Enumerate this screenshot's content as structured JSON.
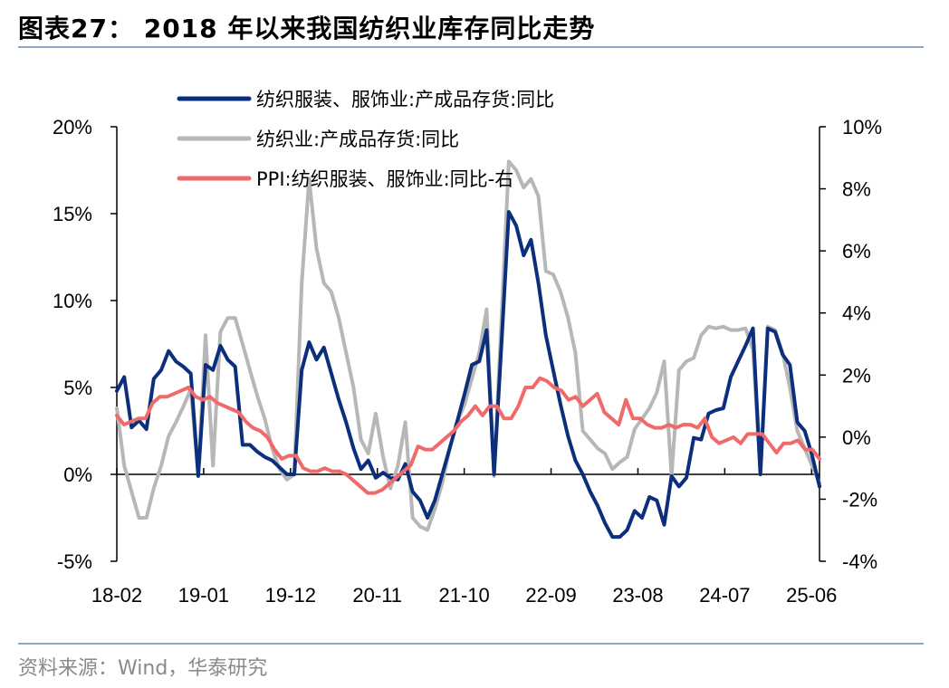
{
  "title": "图表27：   2018 年以来我国纺织业库存同比走势",
  "source": "资料来源：Wind，华泰研究",
  "chart_data": {
    "type": "line",
    "x_ticks": [
      "18-02",
      "19-01",
      "19-12",
      "20-11",
      "21-10",
      "22-09",
      "23-08",
      "24-07",
      "25-06"
    ],
    "x_start": "2018-02",
    "x_end": "2025-07",
    "y_left": {
      "ticks": [
        "20%",
        "15%",
        "10%",
        "5%",
        "0%",
        "-5%"
      ],
      "min": -5,
      "max": 20
    },
    "y_right": {
      "ticks": [
        "10%",
        "8%",
        "6%",
        "4%",
        "2%",
        "0%",
        "-2%",
        "-4%"
      ],
      "min": -4,
      "max": 10
    },
    "grid": false,
    "legend_position": "top-left",
    "series": [
      {
        "name": "纺织服装、服饰业:产成品存货:同比",
        "axis": "left",
        "color": "#0b2f7c",
        "values": [
          4.8,
          5.6,
          2.7,
          3.1,
          2.6,
          5.5,
          6.0,
          7.1,
          6.5,
          6.2,
          5.8,
          -0.1,
          6.3,
          6.0,
          7.4,
          6.6,
          6.2,
          1.7,
          1.7,
          1.3,
          1.0,
          0.8,
          0.4,
          0.0,
          0.0,
          6.0,
          7.6,
          6.6,
          7.3,
          5.8,
          4.3,
          3.0,
          1.5,
          0.3,
          0.8,
          -0.2,
          0.1,
          -0.2,
          -0.3,
          0.6,
          -1.0,
          -1.5,
          -2.5,
          -1.5,
          0.0,
          1.5,
          3.0,
          4.6,
          6.3,
          6.5,
          8.3,
          0.0,
          7.5,
          15.1,
          14.3,
          12.6,
          13.5,
          11.0,
          8.0,
          6.0,
          4.0,
          2.2,
          0.8,
          0.0,
          -1.0,
          -1.8,
          -2.8,
          -3.6,
          -3.6,
          -3.2,
          -2.1,
          -2.5,
          -1.3,
          -1.5,
          -2.9,
          -0.1,
          -0.7,
          -0.2,
          2.1,
          2.0,
          3.5,
          3.7,
          3.8,
          5.6,
          6.5,
          7.4,
          8.4,
          0.0,
          8.4,
          8.2,
          6.9,
          6.3,
          3.0,
          2.5,
          1.1,
          -0.7
        ]
      },
      {
        "name": "纺织业:产成品存货:同比",
        "axis": "left",
        "color": "#b7b7b7",
        "values": [
          3.8,
          0.5,
          -1.0,
          -2.5,
          -2.5,
          -0.8,
          0.5,
          2.2,
          3.0,
          3.9,
          4.9,
          0.0,
          8.0,
          0.5,
          8.2,
          9.0,
          9.0,
          7.5,
          6.0,
          4.5,
          3.2,
          1.5,
          0.3,
          -0.3,
          0.0,
          11.0,
          17.0,
          13.0,
          11.0,
          10.5,
          9.0,
          7.0,
          5.0,
          2.0,
          1.2,
          3.5,
          1.0,
          -0.8,
          0.5,
          3.0,
          -2.5,
          -3.0,
          -3.2,
          -2.0,
          -0.5,
          1.5,
          3.0,
          4.0,
          5.5,
          7.0,
          9.5,
          -0.1,
          9.0,
          18.0,
          17.5,
          16.5,
          17.0,
          16.0,
          11.7,
          11.5,
          10.5,
          9.0,
          7.0,
          2.5,
          2.0,
          1.5,
          1.2,
          0.3,
          0.7,
          1.0,
          2.6,
          3.2,
          3.8,
          4.7,
          6.5,
          -0.1,
          6.0,
          6.5,
          6.7,
          8.0,
          8.5,
          8.4,
          8.5,
          8.3,
          8.3,
          8.4,
          7.2,
          0.0,
          8.5,
          8.3,
          7.0,
          5.0,
          2.5,
          1.5,
          0.5,
          -0.5
        ]
      },
      {
        "name": "PPI:纺织服装、服饰业:同比-右",
        "axis": "right",
        "color": "#f06a6a",
        "values": [
          0.7,
          0.4,
          0.5,
          0.6,
          0.6,
          1.1,
          1.3,
          1.3,
          1.4,
          1.5,
          1.6,
          1.3,
          1.2,
          1.3,
          1.1,
          1.0,
          0.9,
          0.8,
          0.5,
          0.3,
          0.2,
          0.0,
          -0.4,
          -0.7,
          -0.6,
          -0.6,
          -1.0,
          -1.1,
          -1.1,
          -1.0,
          -1.1,
          -1.1,
          -1.2,
          -1.4,
          -1.6,
          -1.8,
          -1.8,
          -1.7,
          -1.5,
          -1.3,
          -1.1,
          -0.9,
          -0.3,
          -0.4,
          -0.4,
          -0.2,
          0.0,
          0.2,
          0.5,
          0.7,
          1.0,
          0.7,
          1.0,
          1.0,
          0.6,
          0.6,
          1.0,
          1.6,
          1.6,
          1.9,
          1.8,
          1.6,
          1.5,
          1.2,
          1.3,
          1.0,
          1.2,
          1.4,
          0.8,
          0.6,
          0.4,
          1.2,
          0.6,
          0.6,
          0.4,
          0.3,
          0.3,
          0.4,
          0.3,
          0.4,
          0.4,
          0.3,
          0.6,
          0.0,
          -0.2,
          -0.1,
          0.0,
          -0.2,
          0.1,
          0.1,
          0.1,
          -0.2,
          -0.5,
          -0.2,
          -0.2,
          -0.1,
          -0.4,
          -0.4,
          -0.7
        ]
      }
    ]
  }
}
